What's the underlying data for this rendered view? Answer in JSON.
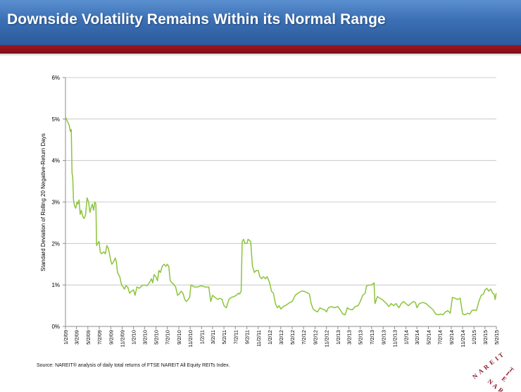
{
  "header": {
    "title": "Downside Volatility Remains Within its Normal Range"
  },
  "footer": {
    "source": "Source: NAREIT® analysis of daily total returns of FTSE NAREIT All Equity REITs Index."
  },
  "logo": {
    "text": "NAREIT",
    "color": "#8b1a2b"
  },
  "colors": {
    "header_blue": "#3b6fb4",
    "header_red": "#8e1019",
    "line": "#8cc43c",
    "grid": "#bfbfbf"
  },
  "chart_data": {
    "type": "line",
    "title": "",
    "xlabel": "",
    "ylabel": "Standard Deviation of Rolling 20 Negative-Return Days",
    "ylim": [
      0,
      6
    ],
    "y_ticks": [
      0,
      1,
      2,
      3,
      4,
      5,
      6
    ],
    "y_tick_labels": [
      "0%",
      "1%",
      "2%",
      "3%",
      "4%",
      "5%",
      "6%"
    ],
    "x_ticks": [
      "2009-01-02",
      "2009-03-02",
      "2009-05-02",
      "2009-07-02",
      "2009-09-02",
      "2009-11-02",
      "2010-01-02",
      "2010-03-02",
      "2010-05-02",
      "2010-07-02",
      "2010-09-02",
      "2010-11-02",
      "2011-01-02",
      "2011-03-02",
      "2011-05-02",
      "2011-07-02",
      "2011-09-02",
      "2011-11-02",
      "2012-01-02",
      "2012-03-02",
      "2012-05-02",
      "2012-07-02",
      "2012-09-02",
      "2012-11-02",
      "2013-01-02",
      "2013-03-02",
      "2013-05-02",
      "2013-07-02",
      "2013-09-02",
      "2013-11-02",
      "2014-01-02",
      "2014-03-02",
      "2014-05-02",
      "2014-07-02",
      "2014-09-02",
      "2014-11-02",
      "2015-01-02",
      "2015-03-02",
      "2015-05-02"
    ],
    "x_tick_labels": [
      "1/2/09",
      "3/2/09",
      "5/2/09",
      "7/2/09",
      "9/2/09",
      "11/2/09",
      "1/2/10",
      "3/2/10",
      "5/2/10",
      "7/2/10",
      "9/2/10",
      "11/2/10",
      "1/2/11",
      "3/2/11",
      "5/2/11",
      "7/2/11",
      "9/2/11",
      "11/2/11",
      "1/2/12",
      "3/2/12",
      "5/2/12",
      "7/2/12",
      "9/2/12",
      "11/2/12",
      "1/2/13",
      "3/2/13",
      "5/2/13",
      "7/2/13",
      "9/2/13",
      "11/2/13",
      "1/2/14",
      "3/2/14",
      "5/2/14",
      "7/2/14",
      "9/2/14",
      "11/2/14",
      "1/2/15",
      "3/2/15",
      "5/2/15"
    ],
    "grid": true,
    "legend": "none",
    "series": [
      {
        "color": "#8cc43c",
        "points": [
          [
            "2009-01-02",
            5.05
          ],
          [
            "2009-01-12",
            4.95
          ],
          [
            "2009-01-22",
            4.85
          ],
          [
            "2009-01-28",
            4.7
          ],
          [
            "2009-02-02",
            4.75
          ],
          [
            "2009-02-06",
            3.7
          ],
          [
            "2009-02-10",
            3.6
          ],
          [
            "2009-02-14",
            3.05
          ],
          [
            "2009-02-20",
            2.9
          ],
          [
            "2009-02-26",
            2.85
          ],
          [
            "2009-03-05",
            3.0
          ],
          [
            "2009-03-10",
            2.95
          ],
          [
            "2009-03-16",
            3.05
          ],
          [
            "2009-03-22",
            2.7
          ],
          [
            "2009-03-28",
            2.8
          ],
          [
            "2009-04-05",
            2.65
          ],
          [
            "2009-04-12",
            2.6
          ],
          [
            "2009-04-20",
            2.7
          ],
          [
            "2009-04-28",
            3.1
          ],
          [
            "2009-05-06",
            3.0
          ],
          [
            "2009-05-13",
            2.75
          ],
          [
            "2009-05-19",
            2.85
          ],
          [
            "2009-05-26",
            2.95
          ],
          [
            "2009-06-02",
            2.8
          ],
          [
            "2009-06-08",
            3.0
          ],
          [
            "2009-06-14",
            2.95
          ],
          [
            "2009-06-18",
            1.95
          ],
          [
            "2009-06-24",
            2.0
          ],
          [
            "2009-07-01",
            2.05
          ],
          [
            "2009-07-07",
            1.8
          ],
          [
            "2009-07-15",
            1.75
          ],
          [
            "2009-07-26",
            1.8
          ],
          [
            "2009-08-04",
            1.75
          ],
          [
            "2009-08-12",
            1.95
          ],
          [
            "2009-08-18",
            1.9
          ],
          [
            "2009-08-24",
            1.8
          ],
          [
            "2009-09-01",
            1.6
          ],
          [
            "2009-09-08",
            1.5
          ],
          [
            "2009-09-16",
            1.55
          ],
          [
            "2009-09-26",
            1.65
          ],
          [
            "2009-10-02",
            1.55
          ],
          [
            "2009-10-08",
            1.3
          ],
          [
            "2009-10-14",
            1.25
          ],
          [
            "2009-10-20",
            1.2
          ],
          [
            "2009-10-30",
            1.0
          ],
          [
            "2009-11-08",
            0.95
          ],
          [
            "2009-11-14",
            0.9
          ],
          [
            "2009-11-22",
            0.98
          ],
          [
            "2009-12-02",
            0.95
          ],
          [
            "2009-12-12",
            0.8
          ],
          [
            "2009-12-22",
            0.85
          ],
          [
            "2010-01-02",
            0.88
          ],
          [
            "2010-01-10",
            0.75
          ],
          [
            "2010-01-20",
            0.95
          ],
          [
            "2010-02-02",
            0.92
          ],
          [
            "2010-02-15",
            0.98
          ],
          [
            "2010-03-02",
            1.0
          ],
          [
            "2010-03-15",
            0.98
          ],
          [
            "2010-03-28",
            1.05
          ],
          [
            "2010-04-08",
            1.15
          ],
          [
            "2010-04-15",
            1.05
          ],
          [
            "2010-04-22",
            1.25
          ],
          [
            "2010-05-02",
            1.2
          ],
          [
            "2010-05-10",
            1.1
          ],
          [
            "2010-05-18",
            1.35
          ],
          [
            "2010-05-26",
            1.3
          ],
          [
            "2010-06-05",
            1.45
          ],
          [
            "2010-06-15",
            1.5
          ],
          [
            "2010-06-25",
            1.45
          ],
          [
            "2010-07-02",
            1.5
          ],
          [
            "2010-07-10",
            1.45
          ],
          [
            "2010-07-18",
            1.1
          ],
          [
            "2010-07-28",
            1.05
          ],
          [
            "2010-08-08",
            1.0
          ],
          [
            "2010-08-16",
            0.95
          ],
          [
            "2010-08-26",
            0.75
          ],
          [
            "2010-09-04",
            0.78
          ],
          [
            "2010-09-14",
            0.85
          ],
          [
            "2010-09-24",
            0.8
          ],
          [
            "2010-10-04",
            0.65
          ],
          [
            "2010-10-12",
            0.6
          ],
          [
            "2010-10-22",
            0.65
          ],
          [
            "2010-10-30",
            0.7
          ],
          [
            "2010-11-06",
            1.0
          ],
          [
            "2010-11-14",
            0.98
          ],
          [
            "2010-11-26",
            0.95
          ],
          [
            "2010-12-10",
            0.95
          ],
          [
            "2011-01-02",
            0.98
          ],
          [
            "2011-01-20",
            0.95
          ],
          [
            "2011-02-10",
            0.95
          ],
          [
            "2011-02-20",
            0.6
          ],
          [
            "2011-03-02",
            0.75
          ],
          [
            "2011-03-15",
            0.7
          ],
          [
            "2011-03-30",
            0.65
          ],
          [
            "2011-04-10",
            0.68
          ],
          [
            "2011-04-22",
            0.65
          ],
          [
            "2011-05-02",
            0.5
          ],
          [
            "2011-05-15",
            0.45
          ],
          [
            "2011-05-28",
            0.65
          ],
          [
            "2011-06-10",
            0.7
          ],
          [
            "2011-06-25",
            0.72
          ],
          [
            "2011-07-08",
            0.75
          ],
          [
            "2011-07-18",
            0.8
          ],
          [
            "2011-07-25",
            0.78
          ],
          [
            "2011-08-02",
            0.85
          ],
          [
            "2011-08-08",
            2.05
          ],
          [
            "2011-08-15",
            2.1
          ],
          [
            "2011-08-22",
            2.0
          ],
          [
            "2011-09-02",
            2.0
          ],
          [
            "2011-09-08",
            2.1
          ],
          [
            "2011-09-14",
            2.08
          ],
          [
            "2011-09-22",
            2.05
          ],
          [
            "2011-10-02",
            1.45
          ],
          [
            "2011-10-12",
            1.3
          ],
          [
            "2011-10-22",
            1.35
          ],
          [
            "2011-11-02",
            1.35
          ],
          [
            "2011-11-10",
            1.2
          ],
          [
            "2011-11-20",
            1.15
          ],
          [
            "2011-11-30",
            1.2
          ],
          [
            "2011-12-10",
            1.15
          ],
          [
            "2011-12-20",
            1.2
          ],
          [
            "2012-01-02",
            1.05
          ],
          [
            "2012-01-12",
            0.85
          ],
          [
            "2012-01-22",
            0.8
          ],
          [
            "2012-02-02",
            0.55
          ],
          [
            "2012-02-12",
            0.45
          ],
          [
            "2012-02-22",
            0.5
          ],
          [
            "2012-03-02",
            0.42
          ],
          [
            "2012-03-15",
            0.48
          ],
          [
            "2012-04-02",
            0.52
          ],
          [
            "2012-04-20",
            0.58
          ],
          [
            "2012-05-02",
            0.6
          ],
          [
            "2012-05-18",
            0.75
          ],
          [
            "2012-06-02",
            0.8
          ],
          [
            "2012-06-20",
            0.85
          ],
          [
            "2012-07-02",
            0.85
          ],
          [
            "2012-07-20",
            0.82
          ],
          [
            "2012-08-02",
            0.78
          ],
          [
            "2012-08-12",
            0.55
          ],
          [
            "2012-08-22",
            0.42
          ],
          [
            "2012-09-02",
            0.38
          ],
          [
            "2012-09-15",
            0.35
          ],
          [
            "2012-09-28",
            0.45
          ],
          [
            "2012-10-10",
            0.42
          ],
          [
            "2012-10-24",
            0.4
          ],
          [
            "2012-11-02",
            0.35
          ],
          [
            "2012-11-12",
            0.45
          ],
          [
            "2012-11-28",
            0.48
          ],
          [
            "2012-12-15",
            0.45
          ],
          [
            "2013-01-02",
            0.48
          ],
          [
            "2013-01-15",
            0.4
          ],
          [
            "2013-01-28",
            0.3
          ],
          [
            "2013-02-10",
            0.28
          ],
          [
            "2013-02-22",
            0.45
          ],
          [
            "2013-03-02",
            0.42
          ],
          [
            "2013-03-20",
            0.4
          ],
          [
            "2013-04-05",
            0.48
          ],
          [
            "2013-04-20",
            0.5
          ],
          [
            "2013-05-02",
            0.6
          ],
          [
            "2013-05-15",
            0.75
          ],
          [
            "2013-05-28",
            0.8
          ],
          [
            "2013-06-05",
            0.98
          ],
          [
            "2013-06-20",
            1.0
          ],
          [
            "2013-07-02",
            1.0
          ],
          [
            "2013-07-15",
            1.05
          ],
          [
            "2013-07-20",
            0.55
          ],
          [
            "2013-08-02",
            0.72
          ],
          [
            "2013-08-15",
            0.68
          ],
          [
            "2013-08-28",
            0.65
          ],
          [
            "2013-09-08",
            0.6
          ],
          [
            "2013-09-20",
            0.55
          ],
          [
            "2013-10-02",
            0.48
          ],
          [
            "2013-10-15",
            0.55
          ],
          [
            "2013-10-28",
            0.5
          ],
          [
            "2013-11-10",
            0.55
          ],
          [
            "2013-11-25",
            0.45
          ],
          [
            "2013-12-08",
            0.55
          ],
          [
            "2013-12-20",
            0.6
          ],
          [
            "2014-01-02",
            0.55
          ],
          [
            "2014-01-15",
            0.5
          ],
          [
            "2014-01-28",
            0.55
          ],
          [
            "2014-02-10",
            0.6
          ],
          [
            "2014-02-22",
            0.58
          ],
          [
            "2014-03-02",
            0.45
          ],
          [
            "2014-03-15",
            0.55
          ],
          [
            "2014-04-02",
            0.58
          ],
          [
            "2014-04-20",
            0.55
          ],
          [
            "2014-05-02",
            0.5
          ],
          [
            "2014-05-15",
            0.45
          ],
          [
            "2014-05-28",
            0.4
          ],
          [
            "2014-06-10",
            0.3
          ],
          [
            "2014-06-25",
            0.28
          ],
          [
            "2014-07-08",
            0.3
          ],
          [
            "2014-07-20",
            0.28
          ],
          [
            "2014-08-02",
            0.35
          ],
          [
            "2014-08-15",
            0.38
          ],
          [
            "2014-08-28",
            0.32
          ],
          [
            "2014-09-08",
            0.7
          ],
          [
            "2014-09-22",
            0.68
          ],
          [
            "2014-10-05",
            0.65
          ],
          [
            "2014-10-20",
            0.68
          ],
          [
            "2014-11-02",
            0.3
          ],
          [
            "2014-11-15",
            0.28
          ],
          [
            "2014-11-28",
            0.32
          ],
          [
            "2014-12-10",
            0.3
          ],
          [
            "2014-12-22",
            0.38
          ],
          [
            "2015-01-02",
            0.4
          ],
          [
            "2015-01-15",
            0.38
          ],
          [
            "2015-01-28",
            0.6
          ],
          [
            "2015-02-10",
            0.75
          ],
          [
            "2015-02-22",
            0.78
          ],
          [
            "2015-03-02",
            0.88
          ],
          [
            "2015-03-12",
            0.92
          ],
          [
            "2015-03-22",
            0.85
          ],
          [
            "2015-04-02",
            0.9
          ],
          [
            "2015-04-12",
            0.8
          ],
          [
            "2015-04-20",
            0.78
          ],
          [
            "2015-04-26",
            0.65
          ],
          [
            "2015-05-01",
            0.8
          ]
        ]
      }
    ]
  }
}
